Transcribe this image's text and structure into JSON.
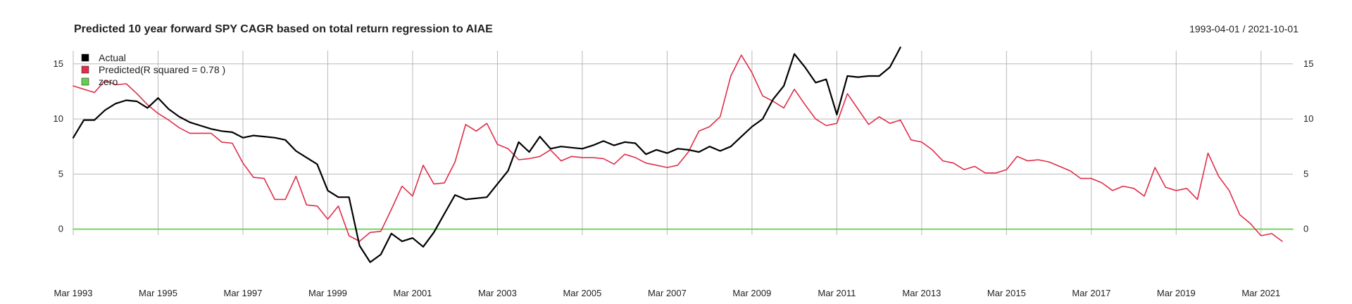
{
  "chart_data": {
    "type": "line",
    "title": "Predicted 10 year forward SPY CAGR based on total return regression to AIAE",
    "date_range": "1993-04-01 / 2021-10-01",
    "xlabel": "",
    "ylabel": "",
    "x_ticks": [
      "Mar 1993",
      "Mar 1995",
      "Mar 1997",
      "Mar 1999",
      "Mar 2001",
      "Mar 2003",
      "Mar 2005",
      "Mar 2007",
      "Mar 2009",
      "Mar 2011",
      "Mar 2013",
      "Mar 2015",
      "Mar 2017",
      "Mar 2019",
      "Mar 2021"
    ],
    "y_ticks": [
      0,
      5,
      10,
      15
    ],
    "xlim": [
      1993.0,
      2021.75
    ],
    "ylim": [
      -3.6,
      16.2
    ],
    "grid": true,
    "legend_position": "top-left",
    "series": [
      {
        "name": "Actual",
        "color": "#000000",
        "start": 1993.0,
        "step": 0.25,
        "values": [
          8.3,
          9.9,
          9.9,
          10.8,
          11.4,
          11.7,
          11.6,
          11.0,
          11.9,
          10.9,
          10.2,
          9.7,
          9.4,
          9.1,
          8.9,
          8.8,
          8.3,
          8.5,
          8.4,
          8.3,
          8.1,
          7.1,
          6.5,
          5.9,
          3.5,
          2.9,
          2.9,
          -1.5,
          -3.0,
          -2.3,
          -0.4,
          -1.1,
          -0.8,
          -1.6,
          -0.3,
          1.4,
          3.1,
          2.7,
          2.8,
          2.9,
          4.1,
          5.3,
          7.9,
          7.0,
          8.4,
          7.3,
          7.5,
          7.4,
          7.3,
          7.6,
          8.0,
          7.6,
          7.9,
          7.8,
          6.8,
          7.2,
          6.9,
          7.3,
          7.2,
          7.0,
          7.5,
          7.1,
          7.5,
          8.4,
          9.3,
          10.0,
          11.8,
          13.0,
          15.9,
          14.7,
          13.3,
          13.6,
          10.4,
          13.9,
          13.8,
          13.9,
          13.9,
          14.7,
          16.5
        ]
      },
      {
        "name": "Predicted(R squared = 0.78 )",
        "color": "#df2e4a",
        "start": 1993.0,
        "step": 0.25,
        "values": [
          13.0,
          12.7,
          12.4,
          13.5,
          13.1,
          13.2,
          12.3,
          11.3,
          10.5,
          9.9,
          9.2,
          8.7,
          8.7,
          8.7,
          7.9,
          7.8,
          6.0,
          4.7,
          4.6,
          2.7,
          2.7,
          4.8,
          2.2,
          2.1,
          0.9,
          2.1,
          -0.6,
          -1.1,
          -0.3,
          -0.2,
          1.8,
          3.9,
          3.0,
          5.8,
          4.1,
          4.2,
          6.1,
          9.5,
          8.9,
          9.6,
          7.7,
          7.3,
          6.3,
          6.4,
          6.6,
          7.2,
          6.2,
          6.6,
          6.5,
          6.5,
          6.4,
          5.9,
          6.8,
          6.5,
          6.0,
          5.8,
          5.6,
          5.8,
          7.0,
          8.9,
          9.3,
          10.2,
          13.9,
          15.8,
          14.2,
          12.1,
          11.6,
          11.0,
          12.7,
          11.3,
          10.0,
          9.4,
          9.6,
          12.3,
          10.9,
          9.5,
          10.2,
          9.6,
          9.9,
          8.1,
          7.9,
          7.2,
          6.2,
          6.0,
          5.4,
          5.7,
          5.1,
          5.1,
          5.4,
          6.6,
          6.2,
          6.3,
          6.1,
          5.7,
          5.3,
          4.6,
          4.6,
          4.2,
          3.5,
          3.9,
          3.7,
          3.0,
          5.6,
          3.8,
          3.5,
          3.7,
          2.7,
          6.9,
          4.8,
          3.5,
          1.3,
          0.5,
          -0.6,
          -0.4,
          -1.1
        ]
      },
      {
        "name": "zero",
        "color": "#61d04f",
        "start": 1993.0,
        "step": 28.75,
        "values": [
          0,
          0
        ]
      }
    ]
  }
}
